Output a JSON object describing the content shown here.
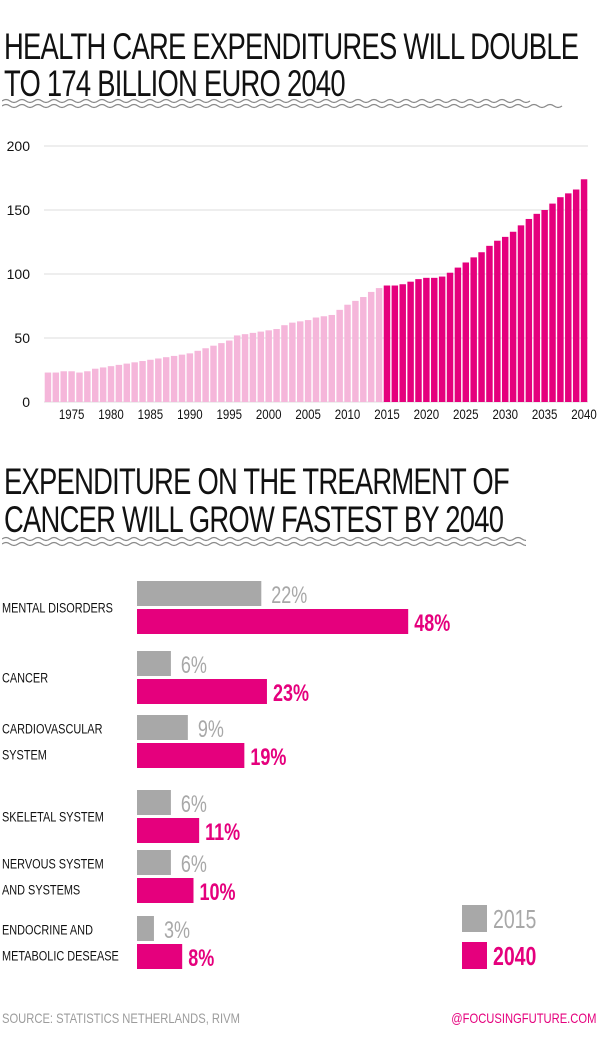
{
  "headline1": {
    "line1": "HEALTH CARE EXPENDITURES WILL DOUBLE",
    "line2": "TO 174 BILLION EURO 2040"
  },
  "headline2": {
    "line1": "EXPENDITURE ON THE TREARMENT OF",
    "line2": "CANCER WILL GROW FASTEST BY 2040"
  },
  "footer": {
    "source": "SOURCE: STATISTICS NETHERLANDS, RIVM",
    "credit": "@FOCUSINGFUTURE.COM"
  },
  "colors": {
    "historic": "#f5b6da",
    "projected": "#e5007d",
    "bar2015": "#a8a8a8",
    "bar2040": "#e5007d",
    "grid": "#dddddd"
  },
  "chart_data": [
    {
      "type": "bar",
      "title": "HEALTH CARE EXPENDITURES WILL DOUBLE TO 174 BILLION EURO 2040",
      "x": [
        1972,
        1973,
        1974,
        1975,
        1976,
        1977,
        1978,
        1979,
        1980,
        1981,
        1982,
        1983,
        1984,
        1985,
        1986,
        1987,
        1988,
        1989,
        1990,
        1991,
        1992,
        1993,
        1994,
        1995,
        1996,
        1997,
        1998,
        1999,
        2000,
        2001,
        2002,
        2003,
        2004,
        2005,
        2006,
        2007,
        2008,
        2009,
        2010,
        2011,
        2012,
        2013,
        2014,
        2015,
        2016,
        2017,
        2018,
        2019,
        2020,
        2021,
        2022,
        2023,
        2024,
        2025,
        2026,
        2027,
        2028,
        2029,
        2030,
        2031,
        2032,
        2033,
        2034,
        2035,
        2036,
        2037,
        2038,
        2039,
        2040
      ],
      "values": [
        23,
        23,
        24,
        24,
        23,
        24,
        26,
        27,
        28,
        29,
        30,
        31,
        32,
        33,
        34,
        35,
        36,
        37,
        38,
        40,
        42,
        44,
        46,
        48,
        52,
        53,
        54,
        55,
        56,
        57,
        60,
        62,
        63,
        64,
        66,
        67,
        68,
        72,
        76,
        79,
        82,
        86,
        89,
        91,
        91,
        92,
        94,
        96,
        97,
        97,
        98,
        101,
        105,
        109,
        113,
        117,
        122,
        126,
        129,
        133,
        138,
        143,
        147,
        150,
        155,
        160,
        163,
        166,
        174
      ],
      "projection_from": 2015,
      "series": [
        {
          "name": "",
          "range": [
            1972,
            2014
          ],
          "color": "#f5b6da"
        },
        {
          "name": "",
          "range": [
            2015,
            2040
          ],
          "color": "#e5007d"
        }
      ],
      "yticks": [
        0,
        50,
        100,
        150,
        200
      ],
      "xticks": [
        1975,
        1980,
        1985,
        1990,
        1995,
        2000,
        2005,
        2010,
        2015,
        2020,
        2025,
        2030,
        2035,
        2040
      ],
      "ylim": [
        0,
        200
      ],
      "grid": true,
      "legend": "none"
    },
    {
      "type": "bar",
      "orientation": "horizontal",
      "title": "EXPENDITURE ON THE TREARMENT OF CANCER WILL GROW FASTEST BY 2040",
      "categories": [
        [
          "MENTAL DISORDERS"
        ],
        [
          "CANCER"
        ],
        [
          "CARDIOVASCULAR",
          "SYSTEM"
        ],
        [
          "SKELETAL SYSTEM"
        ],
        [
          "NERVOUS SYSTEM",
          "AND SYSTEMS"
        ],
        [
          "ENDOCRINE AND",
          "METABOLIC DESEASE"
        ]
      ],
      "series": [
        {
          "name": "2015",
          "values": [
            22,
            6,
            9,
            6,
            6,
            3
          ],
          "labels": [
            "22%",
            "6%",
            "9%",
            "6%",
            "6%",
            "3%"
          ],
          "color": "#a8a8a8"
        },
        {
          "name": "2040",
          "values": [
            48,
            23,
            19,
            11,
            10,
            8
          ],
          "labels": [
            "48%",
            "23%",
            "19%",
            "11%",
            "10%",
            "8%"
          ],
          "color": "#e5007d"
        }
      ],
      "legend": "bottom-right",
      "grid": false
    }
  ]
}
